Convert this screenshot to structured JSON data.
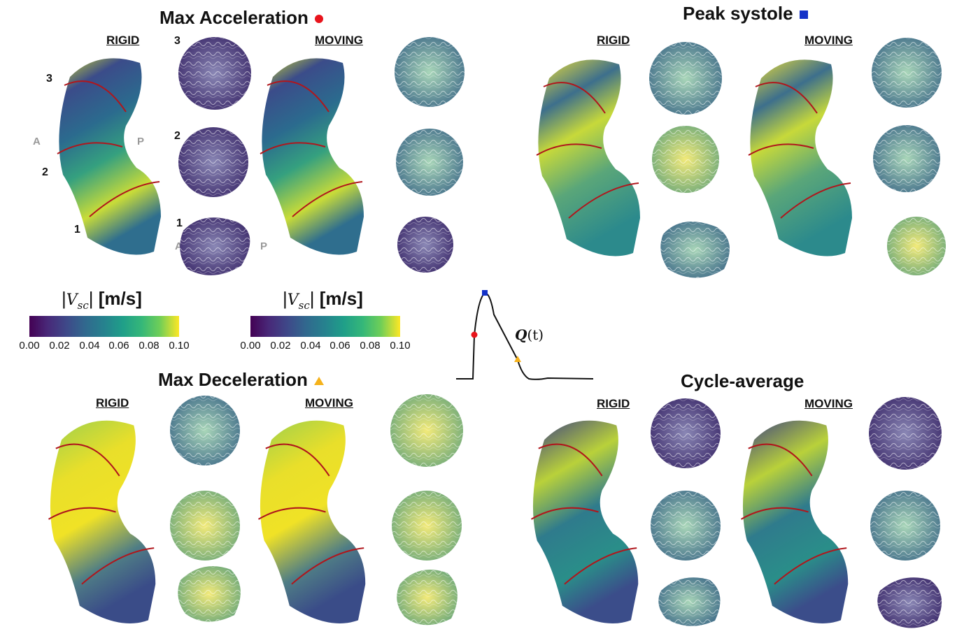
{
  "panels": {
    "max_acceleration": {
      "title": "Max Acceleration",
      "marker_color": "#e8141c",
      "rigid": "RIGID",
      "moving": "MOVING"
    },
    "peak_systole": {
      "title": "Peak systole",
      "marker_color": "#1432c8",
      "rigid": "RIGID",
      "moving": "MOVING"
    },
    "max_deceleration": {
      "title": "Max Deceleration",
      "marker_color": "#f5b21b",
      "rigid": "RIGID",
      "moving": "MOVING"
    },
    "cycle_average": {
      "title": "Cycle-average",
      "rigid": "RIGID",
      "moving": "MOVING"
    }
  },
  "section_labels": {
    "s1": "1",
    "s2": "2",
    "s3": "3"
  },
  "direction_labels": {
    "anterior": "A",
    "posterior": "P"
  },
  "colorbar": {
    "unit": "[m/s]",
    "ticks": [
      "0.00",
      "0.02",
      "0.04",
      "0.06",
      "0.08",
      "0.10"
    ],
    "colormap": "viridis"
  },
  "flow_curve": {
    "label": "Q",
    "arg": "(t)"
  },
  "colors": {
    "section_line": "#b0161c",
    "viridis_low": "#440154",
    "viridis_high": "#fde725"
  }
}
